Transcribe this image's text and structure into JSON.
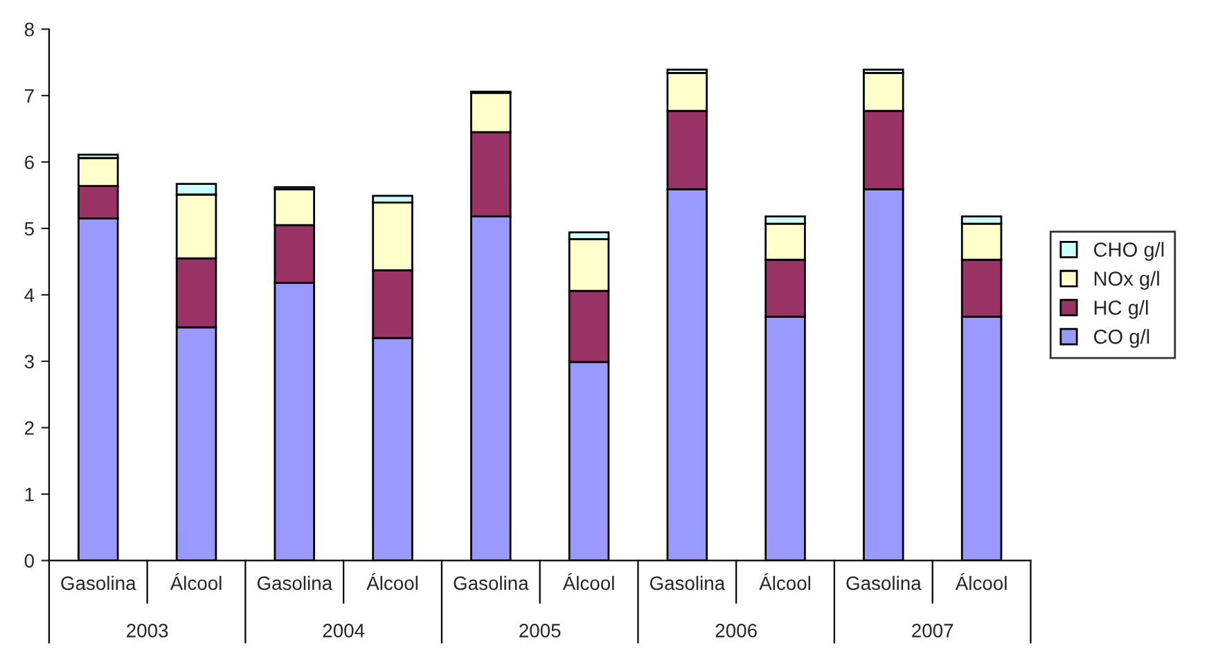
{
  "chart_data": {
    "type": "bar",
    "stacked": true,
    "categories": [
      "Gasolina",
      "Álcool",
      "Gasolina",
      "Álcool",
      "Gasolina",
      "Álcool",
      "Gasolina",
      "Álcool",
      "Gasolina",
      "Álcool"
    ],
    "series": [
      {
        "name": "CO g/l",
        "color": "#9999ff",
        "values": [
          5.15,
          3.51,
          4.18,
          3.35,
          5.18,
          2.99,
          5.59,
          3.67,
          5.59,
          3.67
        ]
      },
      {
        "name": "HC g/l",
        "color": "#993366",
        "values": [
          0.49,
          1.04,
          0.87,
          1.02,
          1.27,
          1.07,
          1.18,
          0.86,
          1.18,
          0.86
        ]
      },
      {
        "name": "NOx g/l",
        "color": "#ffffcc",
        "values": [
          0.42,
          0.96,
          0.54,
          1.02,
          0.59,
          0.78,
          0.57,
          0.54,
          0.57,
          0.54
        ]
      },
      {
        "name": "CHO g/l",
        "color": "#ccffff",
        "values": [
          0.05,
          0.16,
          0.03,
          0.1,
          0.02,
          0.1,
          0.05,
          0.11,
          0.05,
          0.11
        ]
      }
    ],
    "annotations": [
      "2003",
      "2004",
      "2005",
      "2006",
      "2007"
    ],
    "ylim": [
      0,
      8
    ],
    "yticks": [
      0,
      1,
      2,
      3,
      4,
      5,
      6,
      7,
      8
    ],
    "grid": false,
    "legend": "right"
  }
}
